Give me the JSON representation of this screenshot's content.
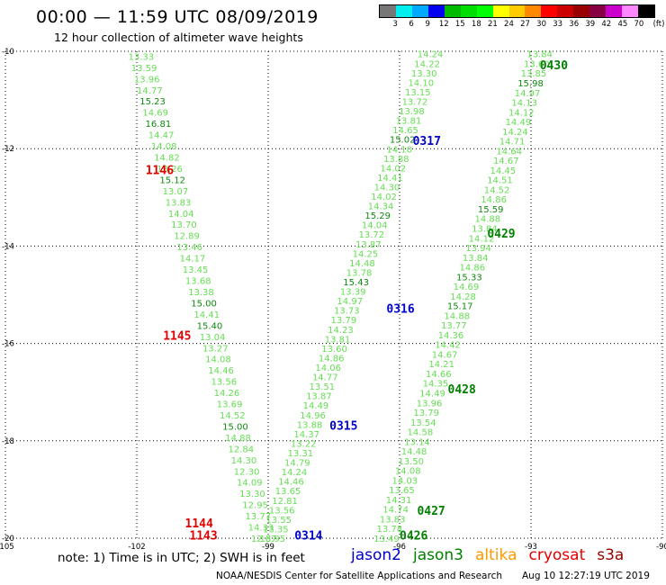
{
  "title": "00:00 — 11:59 UTC 08/09/2019",
  "subtitle": "12 hour collection of altimeter wave heights",
  "note": "note: 1) Time is in UTC; 2) SWH is in feet",
  "footer": {
    "credit": "NOAA/NESDIS Center for Satellite Applications and Research",
    "timestamp": "Aug 10 12:27:19 UTC 2019"
  },
  "legend": [
    {
      "label": "jason2",
      "color": "#0000cc"
    },
    {
      "label": "jason3",
      "color": "#008000"
    },
    {
      "label": "altika",
      "color": "#ff9900"
    },
    {
      "label": "cryosat",
      "color": "#e00000"
    },
    {
      "label": "s3a",
      "color": "#990000"
    }
  ],
  "color_scale": {
    "colors": [
      "#777777",
      "#00eeee",
      "#00aaff",
      "#0000ee",
      "#00bb00",
      "#00dd00",
      "#00ff00",
      "#ffff00",
      "#ffcc00",
      "#ff8800",
      "#ff0000",
      "#cc0000",
      "#990000",
      "#880044",
      "#cc00cc",
      "#ff88ff",
      "#000000"
    ],
    "labels": [
      "3",
      "6",
      "9",
      "12",
      "15",
      "18",
      "21",
      "24",
      "27",
      "30",
      "33",
      "36",
      "39",
      "42",
      "45",
      "70",
      "(ft)"
    ]
  },
  "chart_data": {
    "type": "scatter",
    "title": "00:00 — 11:59 UTC 08/09/2019",
    "subtitle": "12 hour collection of altimeter wave heights",
    "xlabel": "",
    "ylabel": "",
    "xlim": [
      -105,
      -90
    ],
    "ylim": [
      -20,
      -10
    ],
    "x_ticks": [
      -105,
      -102,
      -99,
      -96,
      -93,
      -90
    ],
    "y_ticks": [
      -10,
      -12,
      -14,
      -16,
      -18,
      -20
    ],
    "grid": true,
    "point_color": "#66dd55",
    "dark_threshold": 15,
    "dark_color": "#118811",
    "tracks": [
      {
        "lon_start": -101.9,
        "lat_start": -10.1,
        "lon_end": -99.1,
        "lat_end": -20.0,
        "values": [
          "13.33",
          "13.59",
          "13.96",
          "14.77",
          "15.23",
          "14.69",
          "16.81",
          "14.47",
          "14.08",
          "14.82",
          "13.26",
          "15.12",
          "13.07",
          "13.83",
          "14.04",
          "13.70",
          "12.89",
          "13.46",
          "14.17",
          "13.45",
          "13.68",
          "13.38",
          "15.00",
          "14.41",
          "15.40",
          "13.04",
          "13.27",
          "14.08",
          "14.46",
          "13.56",
          "14.26",
          "13.69",
          "14.52",
          "15.00",
          "14.88",
          "12.84",
          "14.30",
          "12.30",
          "14.09",
          "13.30",
          "12.95",
          "13.77",
          "14.33",
          "12.67"
        ]
      },
      {
        "lon_start": -95.3,
        "lat_start": -10.05,
        "lon_end": -98.9,
        "lat_end": -20.0,
        "values": [
          "14.24",
          "14.22",
          "13.30",
          "14.10",
          "13.15",
          "13.72",
          "13.98",
          "13.81",
          "14.65",
          "15.02",
          "14.10",
          "13.88",
          "14.02",
          "14.41",
          "14.30",
          "14.02",
          "14.34",
          "15.29",
          "14.04",
          "13.72",
          "13.87",
          "14.25",
          "14.48",
          "13.78",
          "15.43",
          "13.39",
          "14.97",
          "13.73",
          "13.79",
          "14.23",
          "13.81",
          "13.60",
          "14.86",
          "14.06",
          "14.77",
          "13.51",
          "13.87",
          "14.49",
          "14.96",
          "13.88",
          "14.37",
          "13.22",
          "13.31",
          "14.79",
          "14.24",
          "14.46",
          "13.65",
          "12.81",
          "13.56",
          "13.55",
          "13.35",
          "13.95"
        ]
      },
      {
        "lon_start": -92.8,
        "lat_start": -10.05,
        "lon_end": -96.3,
        "lat_end": -20.0,
        "values": [
          "13.84",
          "13.60",
          "13.85",
          "15.98",
          "14.97",
          "14.13",
          "14.12",
          "14.49",
          "14.24",
          "14.71",
          "14.64",
          "14.67",
          "14.45",
          "14.51",
          "14.52",
          "14.86",
          "15.59",
          "14.88",
          "13.84",
          "14.12",
          "13.94",
          "13.84",
          "14.86",
          "15.33",
          "14.69",
          "14.28",
          "15.17",
          "14.88",
          "13.77",
          "14.36",
          "14.42",
          "14.67",
          "14.21",
          "14.66",
          "14.35",
          "14.49",
          "13.96",
          "13.79",
          "13.54",
          "14.58",
          "13.14",
          "14.48",
          "13.50",
          "14.08",
          "14.03",
          "13.65",
          "14.31",
          "14.74",
          "13.83",
          "13.78",
          "13.49"
        ]
      }
    ],
    "pass_labels": [
      {
        "text": "1146",
        "lon": -101.8,
        "lat": -12.45,
        "color": "#e00000"
      },
      {
        "text": "1145",
        "lon": -101.4,
        "lat": -15.85,
        "color": "#e00000"
      },
      {
        "text": "1144",
        "lon": -100.9,
        "lat": -19.7,
        "color": "#e00000"
      },
      {
        "text": "1143",
        "lon": -100.8,
        "lat": -19.95,
        "color": "#e00000"
      },
      {
        "text": "0317",
        "lon": -95.7,
        "lat": -11.85,
        "color": "#0000cc"
      },
      {
        "text": "0316",
        "lon": -96.3,
        "lat": -15.3,
        "color": "#0000cc"
      },
      {
        "text": "0315",
        "lon": -97.6,
        "lat": -17.7,
        "color": "#0000cc"
      },
      {
        "text": "0314",
        "lon": -98.4,
        "lat": -19.95,
        "color": "#0000cc"
      },
      {
        "text": "0430",
        "lon": -92.8,
        "lat": -10.3,
        "color": "#008000"
      },
      {
        "text": "0429",
        "lon": -94.0,
        "lat": -13.75,
        "color": "#008000"
      },
      {
        "text": "0428",
        "lon": -94.9,
        "lat": -16.95,
        "color": "#008000"
      },
      {
        "text": "0427",
        "lon": -95.6,
        "lat": -19.45,
        "color": "#008000"
      },
      {
        "text": "0426",
        "lon": -96.0,
        "lat": -19.95,
        "color": "#008000"
      }
    ]
  }
}
